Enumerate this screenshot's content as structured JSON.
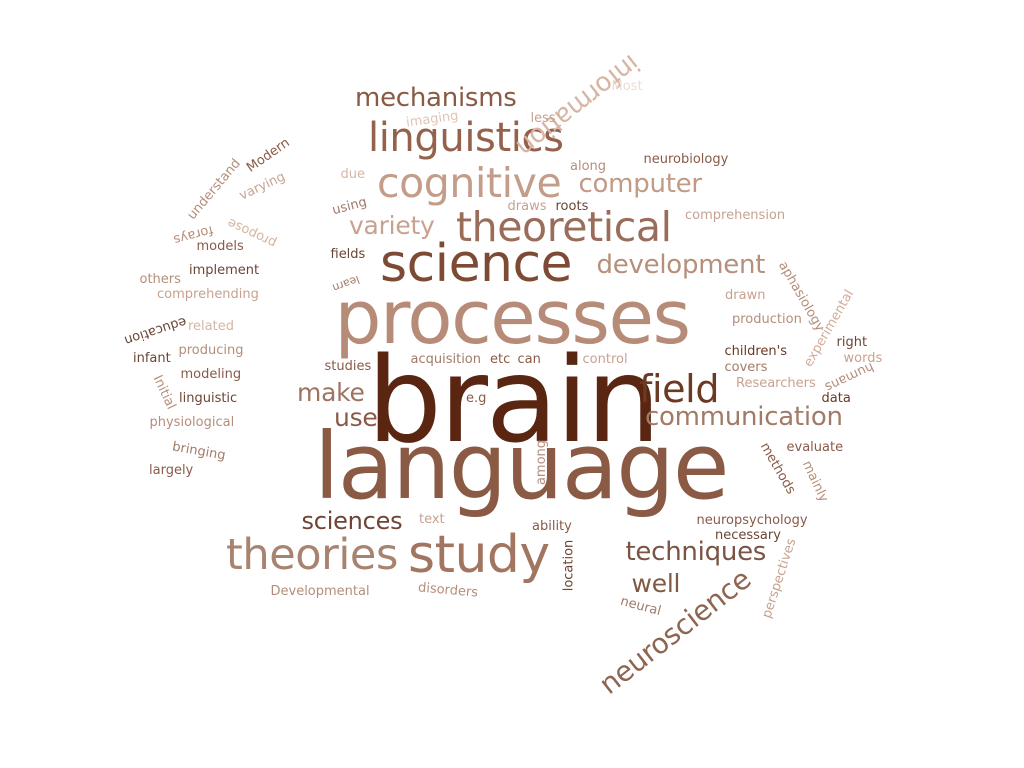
{
  "words": [
    {
      "text": "brain",
      "color": "#5a2612"
    },
    {
      "text": "language",
      "color": "#8a5a45"
    },
    {
      "text": "processes",
      "color": "#b68b77"
    },
    {
      "text": "science",
      "color": "#7d4a35"
    },
    {
      "text": "study",
      "color": "#a27560"
    },
    {
      "text": "theoretical",
      "color": "#9a6d5a"
    },
    {
      "text": "cognitive",
      "color": "#c39d89"
    },
    {
      "text": "linguistics",
      "color": "#94624c"
    },
    {
      "text": "theories",
      "color": "#a88470"
    },
    {
      "text": "field",
      "color": "#6b3a22"
    },
    {
      "text": "communication",
      "color": "#a27b68"
    },
    {
      "text": "development",
      "color": "#b5907c"
    },
    {
      "text": "mechanisms",
      "color": "#8a5a44"
    },
    {
      "text": "computer",
      "color": "#c29b86"
    },
    {
      "text": "neuroscience",
      "color": "#8e6551"
    },
    {
      "text": "techniques",
      "color": "#7a5444"
    },
    {
      "text": "information",
      "color": "#d7b5a4"
    },
    {
      "text": "sciences",
      "color": "#6e4535"
    },
    {
      "text": "variety",
      "color": "#c7a290"
    },
    {
      "text": "make",
      "color": "#9e7360"
    },
    {
      "text": "use",
      "color": "#8a5a48"
    },
    {
      "text": "well",
      "color": "#7f5a45"
    },
    {
      "text": "neurobiology",
      "color": "#8a5a48"
    },
    {
      "text": "comprehension",
      "color": "#c7a290"
    },
    {
      "text": "aphasiology",
      "color": "#b58e7a"
    },
    {
      "text": "experimental",
      "color": "#d1ab98"
    },
    {
      "text": "production",
      "color": "#b58e7a"
    },
    {
      "text": "children's",
      "color": "#6b3a22"
    },
    {
      "text": "covers",
      "color": "#a27b68"
    },
    {
      "text": "Researchers",
      "color": "#c7a290"
    },
    {
      "text": "data",
      "color": "#6b3a22"
    },
    {
      "text": "evaluate",
      "color": "#8a5a48"
    },
    {
      "text": "right",
      "color": "#6b4535"
    },
    {
      "text": "words",
      "color": "#c7a290"
    },
    {
      "text": "humans",
      "color": "#b58e7a"
    },
    {
      "text": "methods",
      "color": "#8a5a48"
    },
    {
      "text": "mainly",
      "color": "#b58e7a"
    },
    {
      "text": "neuropsychology",
      "color": "#8a5a48"
    },
    {
      "text": "necessary",
      "color": "#6b4535"
    },
    {
      "text": "perspectives",
      "color": "#c7a290"
    },
    {
      "text": "neural",
      "color": "#a27b68"
    },
    {
      "text": "location",
      "color": "#6b4535"
    },
    {
      "text": "ability",
      "color": "#8a5a48"
    },
    {
      "text": "text",
      "color": "#c7a290"
    },
    {
      "text": "disorders",
      "color": "#b58e7a"
    },
    {
      "text": "Developmental",
      "color": "#b58e7a"
    },
    {
      "text": "among",
      "color": "#b58e7a"
    },
    {
      "text": "e.g",
      "color": "#8a5a48"
    },
    {
      "text": "acquisition",
      "color": "#a27b68"
    },
    {
      "text": "etc",
      "color": "#8a5a48"
    },
    {
      "text": "can",
      "color": "#8a5a48"
    },
    {
      "text": "control",
      "color": "#c7a290"
    },
    {
      "text": "drawn",
      "color": "#c7a290"
    },
    {
      "text": "studies",
      "color": "#8a5a48"
    },
    {
      "text": "fields",
      "color": "#6b4535"
    },
    {
      "text": "learn",
      "color": "#a27b68"
    },
    {
      "text": "using",
      "color": "#a27b68"
    },
    {
      "text": "due",
      "color": "#d7b5a4"
    },
    {
      "text": "draws",
      "color": "#c7a290"
    },
    {
      "text": "roots",
      "color": "#6b4535"
    },
    {
      "text": "along",
      "color": "#b58e7a"
    },
    {
      "text": "less",
      "color": "#c7a290"
    },
    {
      "text": "imaging",
      "color": "#e0c4b5"
    },
    {
      "text": "Most",
      "color": "#ecdcd3"
    },
    {
      "text": "implement",
      "color": "#6b4535"
    },
    {
      "text": "others",
      "color": "#b58e7a"
    },
    {
      "text": "comprehending",
      "color": "#c7a290"
    },
    {
      "text": "models",
      "color": "#8a5a48"
    },
    {
      "text": "forays",
      "color": "#b58e7a"
    },
    {
      "text": "propose",
      "color": "#d7b5a4"
    },
    {
      "text": "understand",
      "color": "#b58e7a"
    },
    {
      "text": "varying",
      "color": "#c7a290"
    },
    {
      "text": "Modern",
      "color": "#8a5a48"
    },
    {
      "text": "education",
      "color": "#6b4535"
    },
    {
      "text": "related",
      "color": "#d7b5a4"
    },
    {
      "text": "infant",
      "color": "#6b4535"
    },
    {
      "text": "producing",
      "color": "#b58e7a"
    },
    {
      "text": "modeling",
      "color": "#8a5a48"
    },
    {
      "text": "Initial",
      "color": "#b58e7a"
    },
    {
      "text": "linguistic",
      "color": "#6b4535"
    },
    {
      "text": "physiological",
      "color": "#b58e7a"
    },
    {
      "text": "bringing",
      "color": "#a27b68"
    },
    {
      "text": "largely",
      "color": "#8a5a48"
    }
  ]
}
